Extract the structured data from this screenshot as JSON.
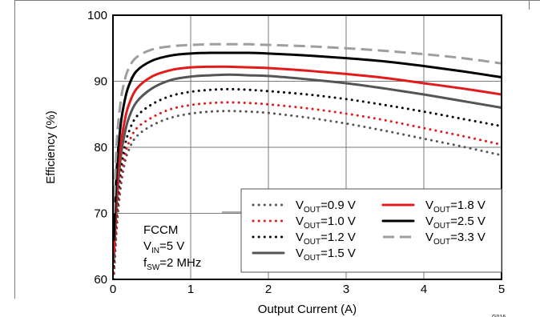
{
  "chart_data": {
    "type": "line",
    "xlabel": "Output Current (A)",
    "ylabel": "Efficiency (%)",
    "xlim": [
      0,
      5
    ],
    "ylim": [
      60,
      100
    ],
    "xticks": [
      "0",
      "1",
      "2",
      "3",
      "4",
      "5"
    ],
    "yticks": [
      "60",
      "70",
      "80",
      "90",
      "100"
    ],
    "grid": true,
    "legend_placement": "bottom-right",
    "annotation": {
      "line1": "FCCM",
      "vin_main": "V",
      "vin_sub": "IN",
      "vin_rest": "=5 V",
      "fsw_main": "f",
      "fsw_sub": "SW",
      "fsw_rest": "=2 MHz"
    },
    "figure_id": "G016",
    "series": [
      {
        "label_main": "V",
        "label_sub": "OUT",
        "label_rest": "=0.9 V",
        "color": "#555555",
        "style": "dotted",
        "x": [
          0.01,
          0.05,
          0.1,
          0.15,
          0.2,
          0.3,
          0.5,
          0.75,
          1.0,
          1.25,
          1.5,
          1.75,
          2.0,
          2.5,
          3.0,
          3.5,
          4.0,
          4.5,
          5.0
        ],
        "y": [
          60,
          68,
          74,
          77.5,
          79.5,
          81.6,
          83.3,
          84.5,
          85.1,
          85.4,
          85.5,
          85.4,
          85.2,
          84.5,
          83.6,
          82.5,
          81.3,
          80.1,
          78.8
        ]
      },
      {
        "label_main": "V",
        "label_sub": "OUT",
        "label_rest": "=1.0 V",
        "color": "#e31a1c",
        "style": "dotted",
        "x": [
          0.01,
          0.05,
          0.1,
          0.15,
          0.2,
          0.3,
          0.5,
          0.75,
          1.0,
          1.25,
          1.5,
          1.75,
          2.0,
          2.5,
          3.0,
          3.5,
          4.0,
          4.5,
          5.0
        ],
        "y": [
          61,
          69,
          75.2,
          78.6,
          80.6,
          82.8,
          84.5,
          85.8,
          86.4,
          86.7,
          86.8,
          86.7,
          86.5,
          85.9,
          85.1,
          84.1,
          82.9,
          81.7,
          80.4
        ]
      },
      {
        "label_main": "V",
        "label_sub": "OUT",
        "label_rest": "=1.2 V",
        "color": "#000000",
        "style": "dotted",
        "x": [
          0.01,
          0.05,
          0.1,
          0.15,
          0.2,
          0.3,
          0.5,
          0.75,
          1.0,
          1.25,
          1.5,
          1.75,
          2.0,
          2.5,
          3.0,
          3.5,
          4.0,
          4.5,
          5.0
        ],
        "y": [
          62,
          70.5,
          76.5,
          80,
          82.2,
          84.6,
          86.5,
          87.8,
          88.4,
          88.7,
          88.8,
          88.7,
          88.5,
          88,
          87.3,
          86.4,
          85.4,
          84.3,
          83.2
        ]
      },
      {
        "label_main": "V",
        "label_sub": "OUT",
        "label_rest": "=1.5 V",
        "color": "#555555",
        "style": "solid",
        "x": [
          0.01,
          0.05,
          0.1,
          0.15,
          0.2,
          0.3,
          0.5,
          0.75,
          1.0,
          1.25,
          1.5,
          1.75,
          2.0,
          2.5,
          3.0,
          3.5,
          4.0,
          4.5,
          5.0
        ],
        "y": [
          63,
          72,
          78.5,
          82,
          84.3,
          86.8,
          88.9,
          90.2,
          90.7,
          90.9,
          91,
          90.9,
          90.8,
          90.3,
          89.7,
          88.9,
          88,
          87,
          86
        ]
      },
      {
        "label_main": "V",
        "label_sub": "OUT",
        "label_rest": "=1.8 V",
        "color": "#e31a1c",
        "style": "solid",
        "x": [
          0.01,
          0.05,
          0.1,
          0.15,
          0.2,
          0.3,
          0.5,
          0.75,
          1.0,
          1.25,
          1.5,
          1.75,
          2.0,
          2.5,
          3.0,
          3.5,
          4.0,
          4.5,
          5.0
        ],
        "y": [
          64,
          74,
          80.3,
          84,
          86.3,
          88.8,
          90.7,
          91.7,
          92.1,
          92.2,
          92.2,
          92.1,
          92,
          91.6,
          91.1,
          90.5,
          89.7,
          88.9,
          88
        ]
      },
      {
        "label_main": "V",
        "label_sub": "OUT",
        "label_rest": "=2.5 V",
        "color": "#000000",
        "style": "solid",
        "x": [
          0.01,
          0.05,
          0.1,
          0.15,
          0.2,
          0.3,
          0.5,
          0.75,
          1.0,
          1.25,
          1.5,
          1.75,
          2.0,
          2.5,
          3.0,
          3.5,
          4.0,
          4.5,
          5.0
        ],
        "y": [
          66,
          77,
          83.5,
          87,
          89.2,
          91.5,
          93.1,
          93.9,
          94.2,
          94.3,
          94.3,
          94.3,
          94.2,
          93.9,
          93.5,
          93,
          92.3,
          91.5,
          90.6
        ]
      },
      {
        "label_main": "V",
        "label_sub": "OUT",
        "label_rest": "=3.3 V",
        "color": "#9e9e9e",
        "style": "dashed",
        "x": [
          0.01,
          0.05,
          0.1,
          0.15,
          0.2,
          0.3,
          0.5,
          0.75,
          1.0,
          1.25,
          1.5,
          1.75,
          2.0,
          2.5,
          3.0,
          3.5,
          4.0,
          4.5,
          5.0
        ],
        "y": [
          70,
          81,
          87,
          90.1,
          91.9,
          93.6,
          94.8,
          95.3,
          95.5,
          95.6,
          95.6,
          95.6,
          95.5,
          95.3,
          95,
          94.6,
          94.1,
          93.5,
          92.7
        ]
      }
    ]
  }
}
